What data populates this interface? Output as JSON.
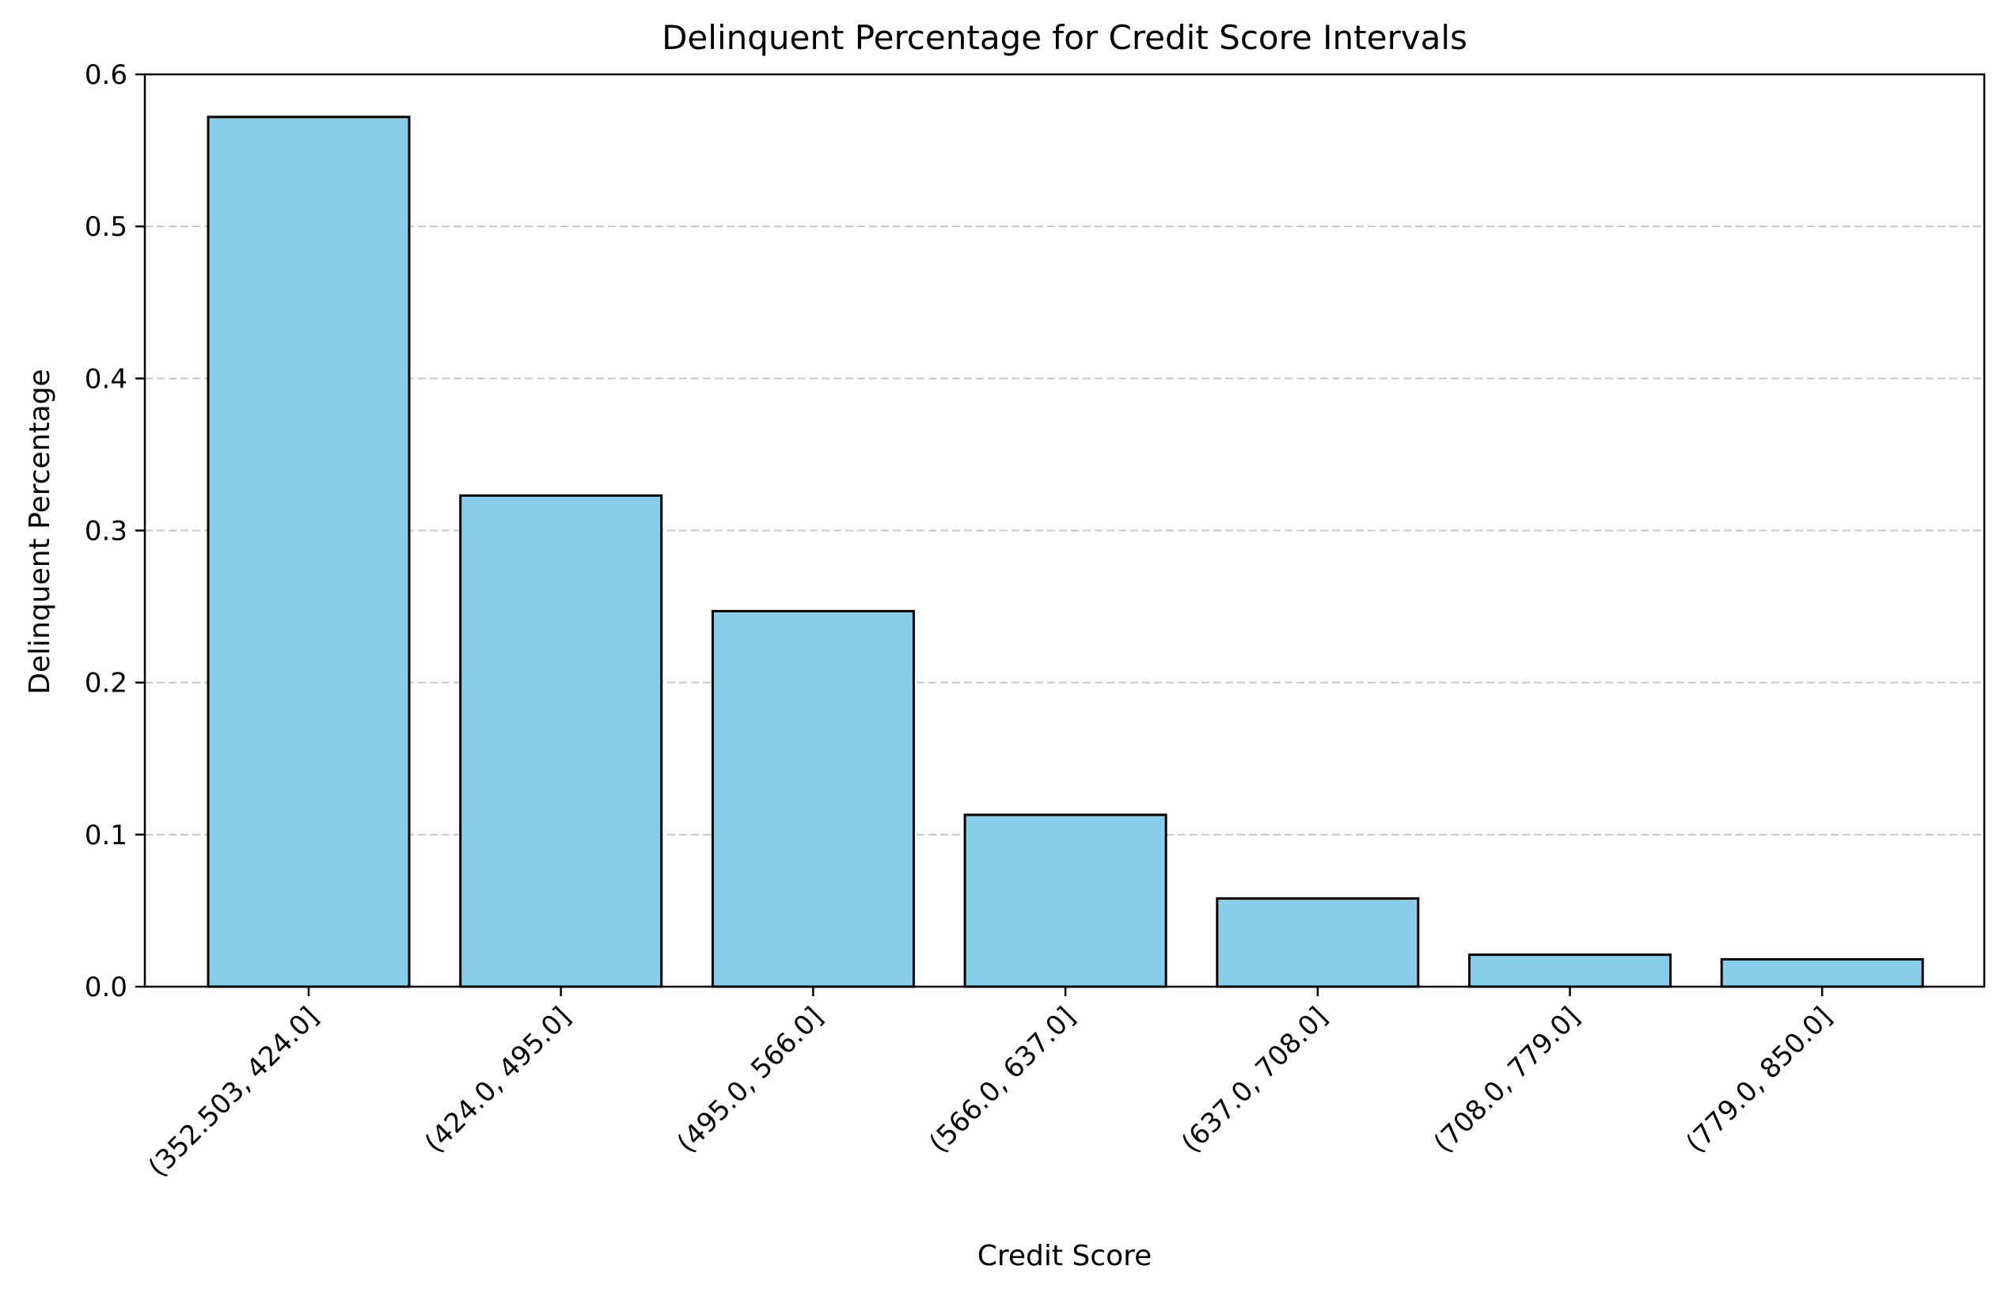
{
  "chart_data": {
    "type": "bar",
    "title": "Delinquent Percentage for Credit Score Intervals",
    "xlabel": "Credit Score",
    "ylabel": "Delinquent Percentage",
    "categories": [
      "(352.503, 424.0]",
      "(424.0, 495.0]",
      "(495.0, 566.0]",
      "(566.0, 637.0]",
      "(637.0, 708.0]",
      "(708.0, 779.0]",
      "(779.0, 850.0]"
    ],
    "values": [
      0.572,
      0.323,
      0.247,
      0.113,
      0.058,
      0.021,
      0.018
    ],
    "ylim": [
      0,
      0.6
    ],
    "yticks": [
      "0.0",
      "0.1",
      "0.2",
      "0.3",
      "0.4",
      "0.5",
      "0.6"
    ],
    "grid": "y-axis dashed",
    "bar_color": "#87CEEB",
    "bar_edge_color": "#000000",
    "grid_color": "#c8c8c8"
  }
}
